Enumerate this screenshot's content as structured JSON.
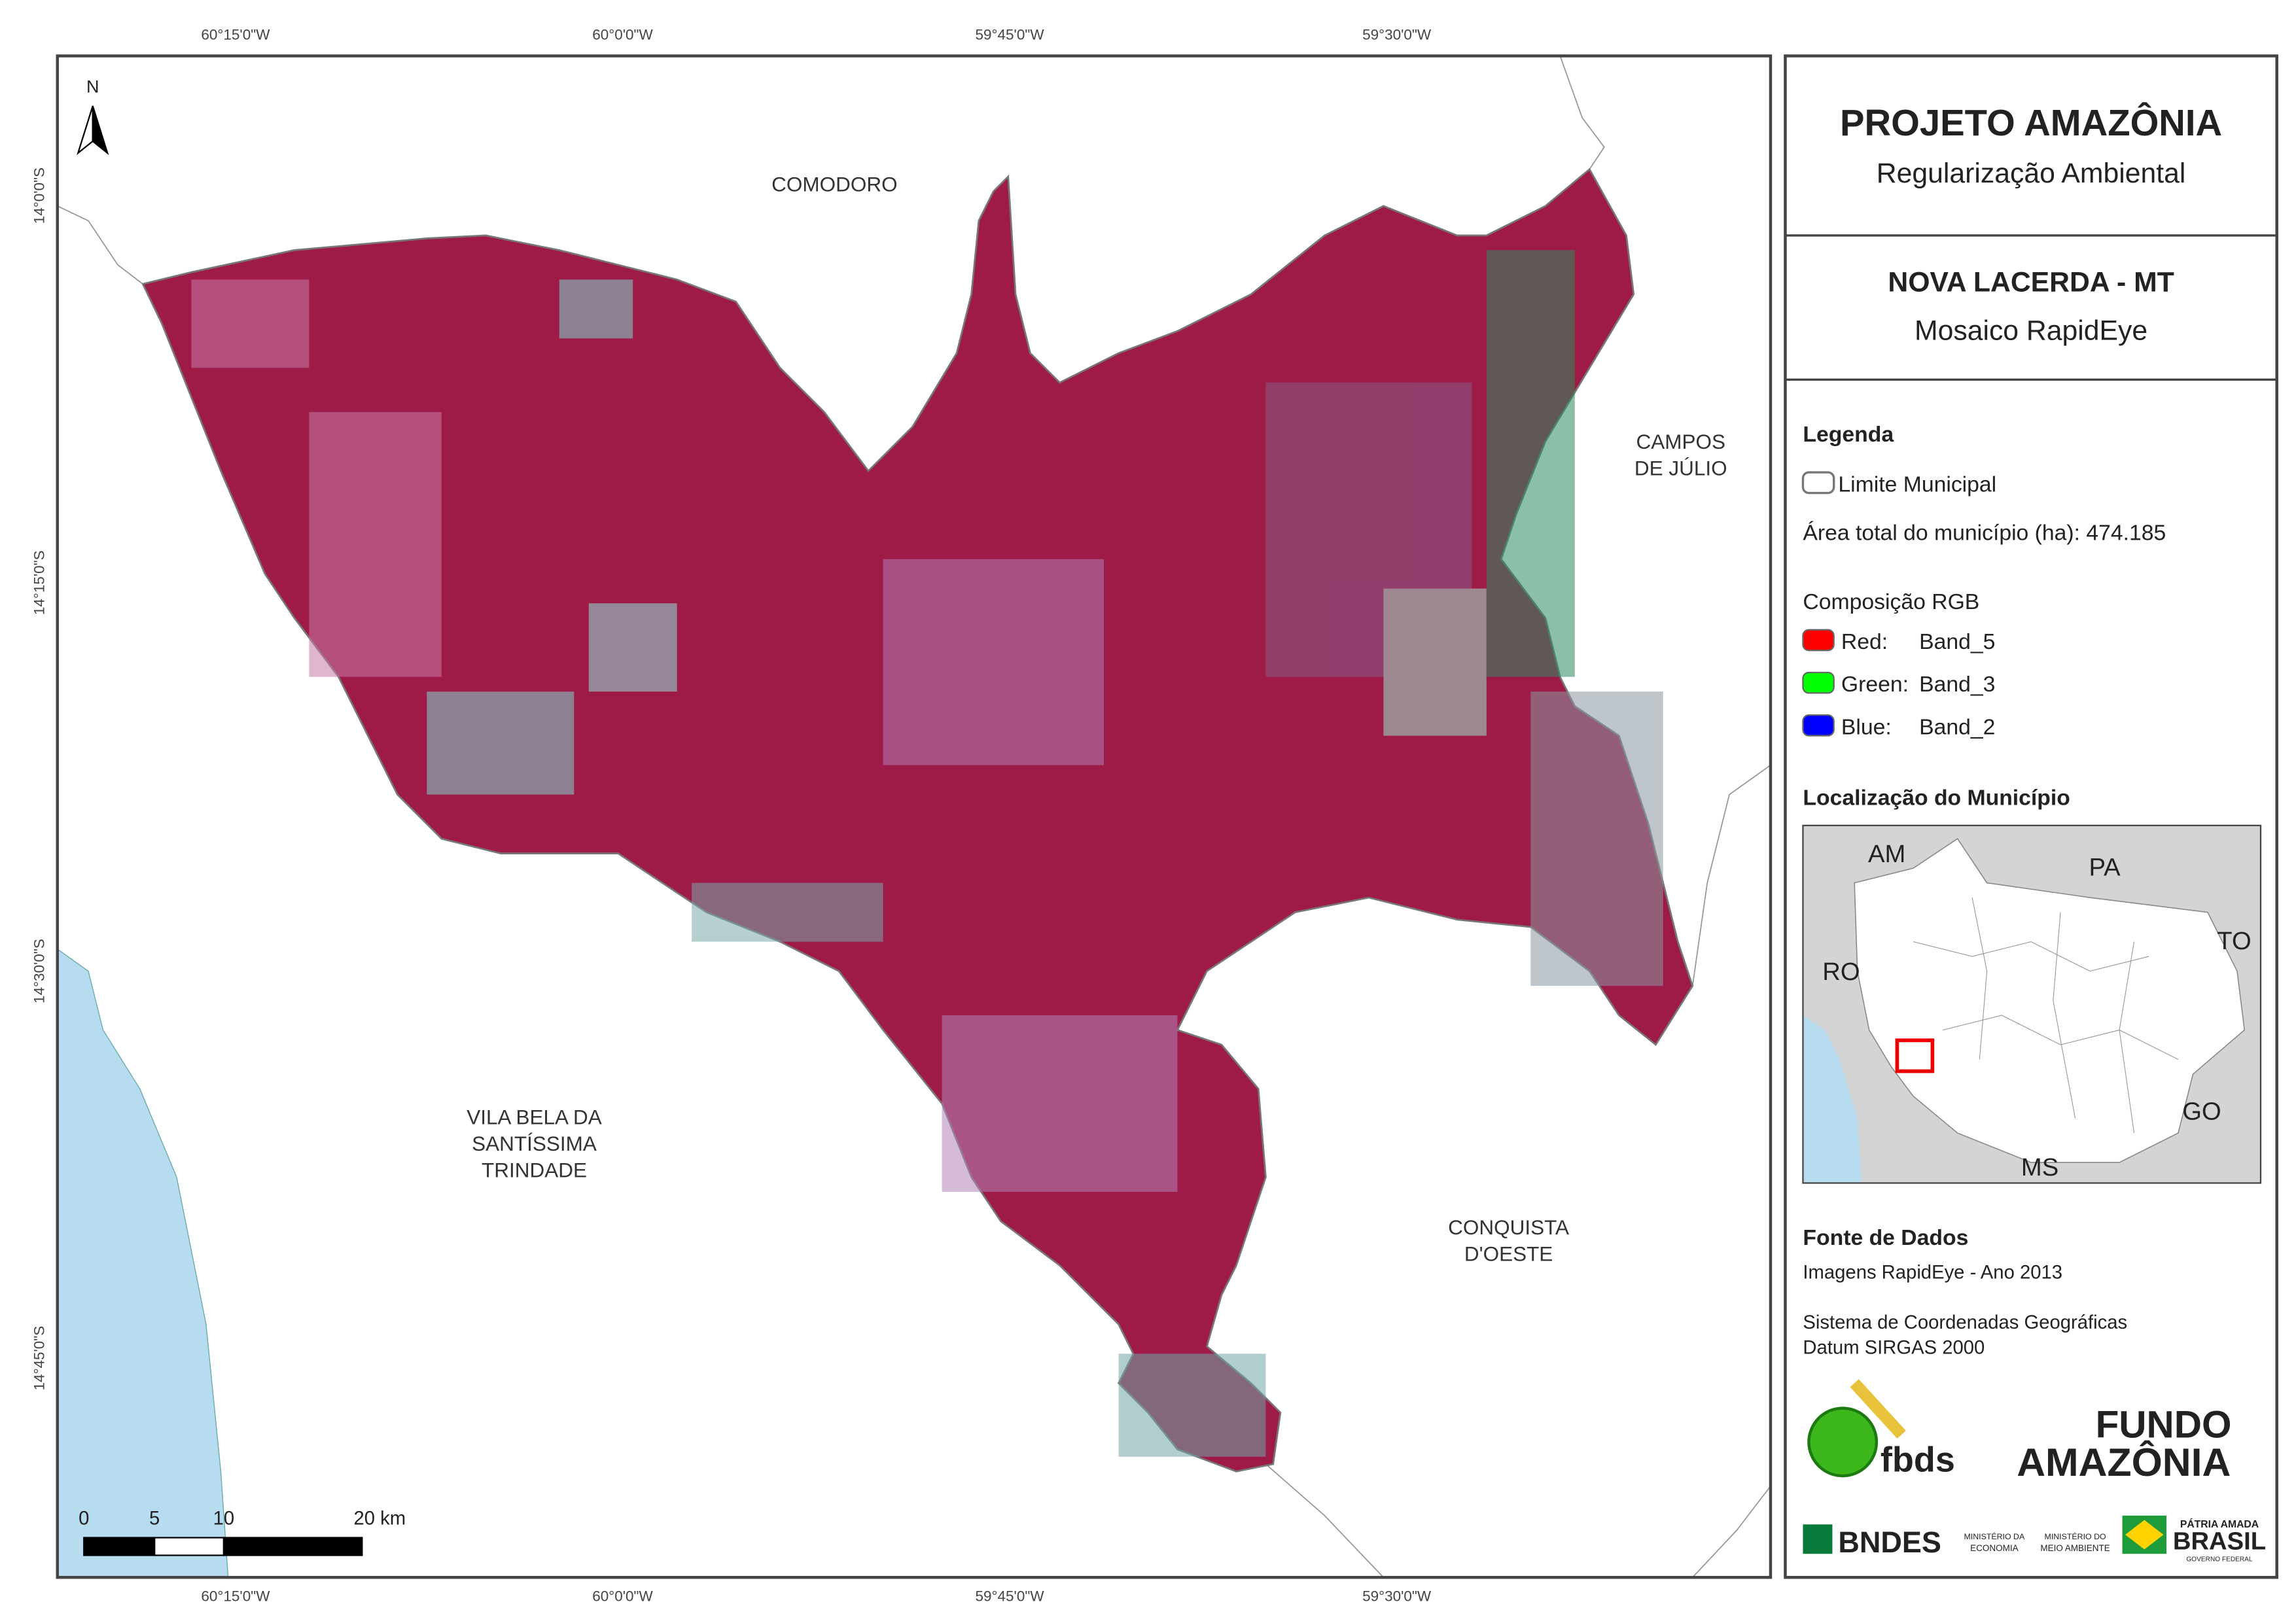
{
  "map": {
    "x_labels_top": [
      "60°15'0\"W",
      "60°0'0\"W",
      "59°45'0\"W",
      "59°30'0\"W"
    ],
    "x_labels_bottom": [
      "60°15'0\"W",
      "60°0'0\"W",
      "59°45'0\"W",
      "59°30'0\"W"
    ],
    "y_labels_left": [
      "14°0'0\"S",
      "14°15'0\"S",
      "14°30'0\"S",
      "14°45'0\"S"
    ],
    "north_arrow": "N",
    "places": {
      "comodoro": [
        "COMODORO"
      ],
      "campos": [
        "CAMPOS",
        "DE JÚLIO"
      ],
      "vila_bela": [
        "VILA BELA DA",
        "SANTÍSSIMA",
        "TRINDADE"
      ],
      "conquista": [
        "CONQUISTA",
        "D'OESTE"
      ]
    },
    "scale_bar": [
      "0",
      "5",
      "10",
      "20 km"
    ]
  },
  "panel": {
    "title": "PROJETO AMAZÔNIA",
    "subtitle": "Regularização Ambiental",
    "municipality": "NOVA LACERDA - MT",
    "product": "Mosaico RapidEye",
    "legend": {
      "heading": "Legenda",
      "boundary": "Limite Municipal",
      "area": "Área total do município (ha): 474.185",
      "rgb_heading": "Composição RGB",
      "bands": [
        [
          "Red:",
          "Band_5"
        ],
        [
          "Green:",
          "Band_3"
        ],
        [
          "Blue:",
          "Band_2"
        ]
      ]
    },
    "location": {
      "heading": "Localização do Município",
      "labels": [
        "AM",
        "PA",
        "TO",
        "RO",
        "GO",
        "MS"
      ]
    },
    "sources": {
      "heading": "Fonte de Dados",
      "lines": [
        "Imagens RapidEye - Ano 2013",
        "Sistema de Coordenadas Geográficas",
        "Datum SIRGAS 2000"
      ]
    },
    "logos": [
      "fbds",
      "FUNDO",
      "AMAZÔNIA",
      "BNDES",
      "MINISTÉRIO DA",
      "ECONOMIA",
      "MINISTÉRIO DO",
      "MEIO AMBIENTE",
      "PÁTRIA AMADA",
      "BRASIL",
      "GOVERNO FEDERAL"
    ]
  }
}
